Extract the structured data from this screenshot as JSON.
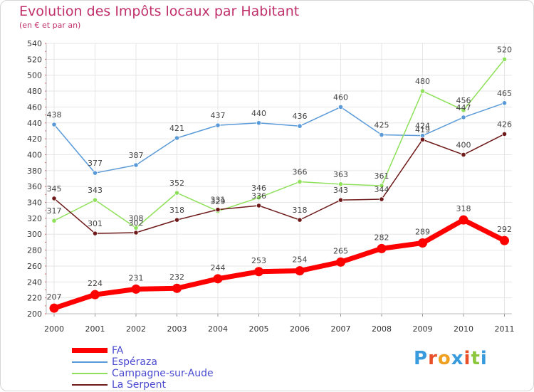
{
  "header": {
    "title": "Evolution des Impôts locaux par Habitant",
    "subtitle": "(en € et par an)"
  },
  "brand": {
    "text": "Proxiti",
    "colors": [
      "#3a9bdc",
      "#e8502a",
      "#f0a020",
      "#3a9bdc",
      "#e8502a",
      "#8cc63f",
      "#3a9bdc"
    ]
  },
  "chart_data": {
    "type": "line",
    "title": "Evolution des Impôts locaux par Habitant",
    "subtitle": "(en € et par an)",
    "x": [
      "2000",
      "2001",
      "2002",
      "2003",
      "2004",
      "2005",
      "2006",
      "2007",
      "2008",
      "2009",
      "2010",
      "2011"
    ],
    "ylim": [
      200,
      540
    ],
    "yticks": [
      200,
      220,
      240,
      260,
      280,
      300,
      320,
      340,
      360,
      380,
      400,
      420,
      440,
      460,
      480,
      500,
      520,
      540
    ],
    "grid": true,
    "legend": "bottom-left",
    "series": [
      {
        "name": "FA",
        "color": "#ff0000",
        "values": [
          207,
          224,
          231,
          232,
          244,
          253,
          254,
          265,
          282,
          289,
          318,
          292
        ]
      },
      {
        "name": "Espéraza",
        "color": "#5a9ad8",
        "values": [
          438,
          377,
          387,
          421,
          437,
          440,
          436,
          460,
          425,
          424,
          447,
          465
        ]
      },
      {
        "name": "Campagne-sur-Aude",
        "color": "#8fe05a",
        "values": [
          317,
          343,
          308,
          352,
          329,
          346,
          366,
          363,
          361,
          480,
          456,
          520
        ]
      },
      {
        "name": "La Serpent",
        "color": "#6e1a1a",
        "values": [
          345,
          301,
          302,
          318,
          331,
          336,
          318,
          343,
          344,
          419,
          400,
          426
        ]
      }
    ]
  }
}
